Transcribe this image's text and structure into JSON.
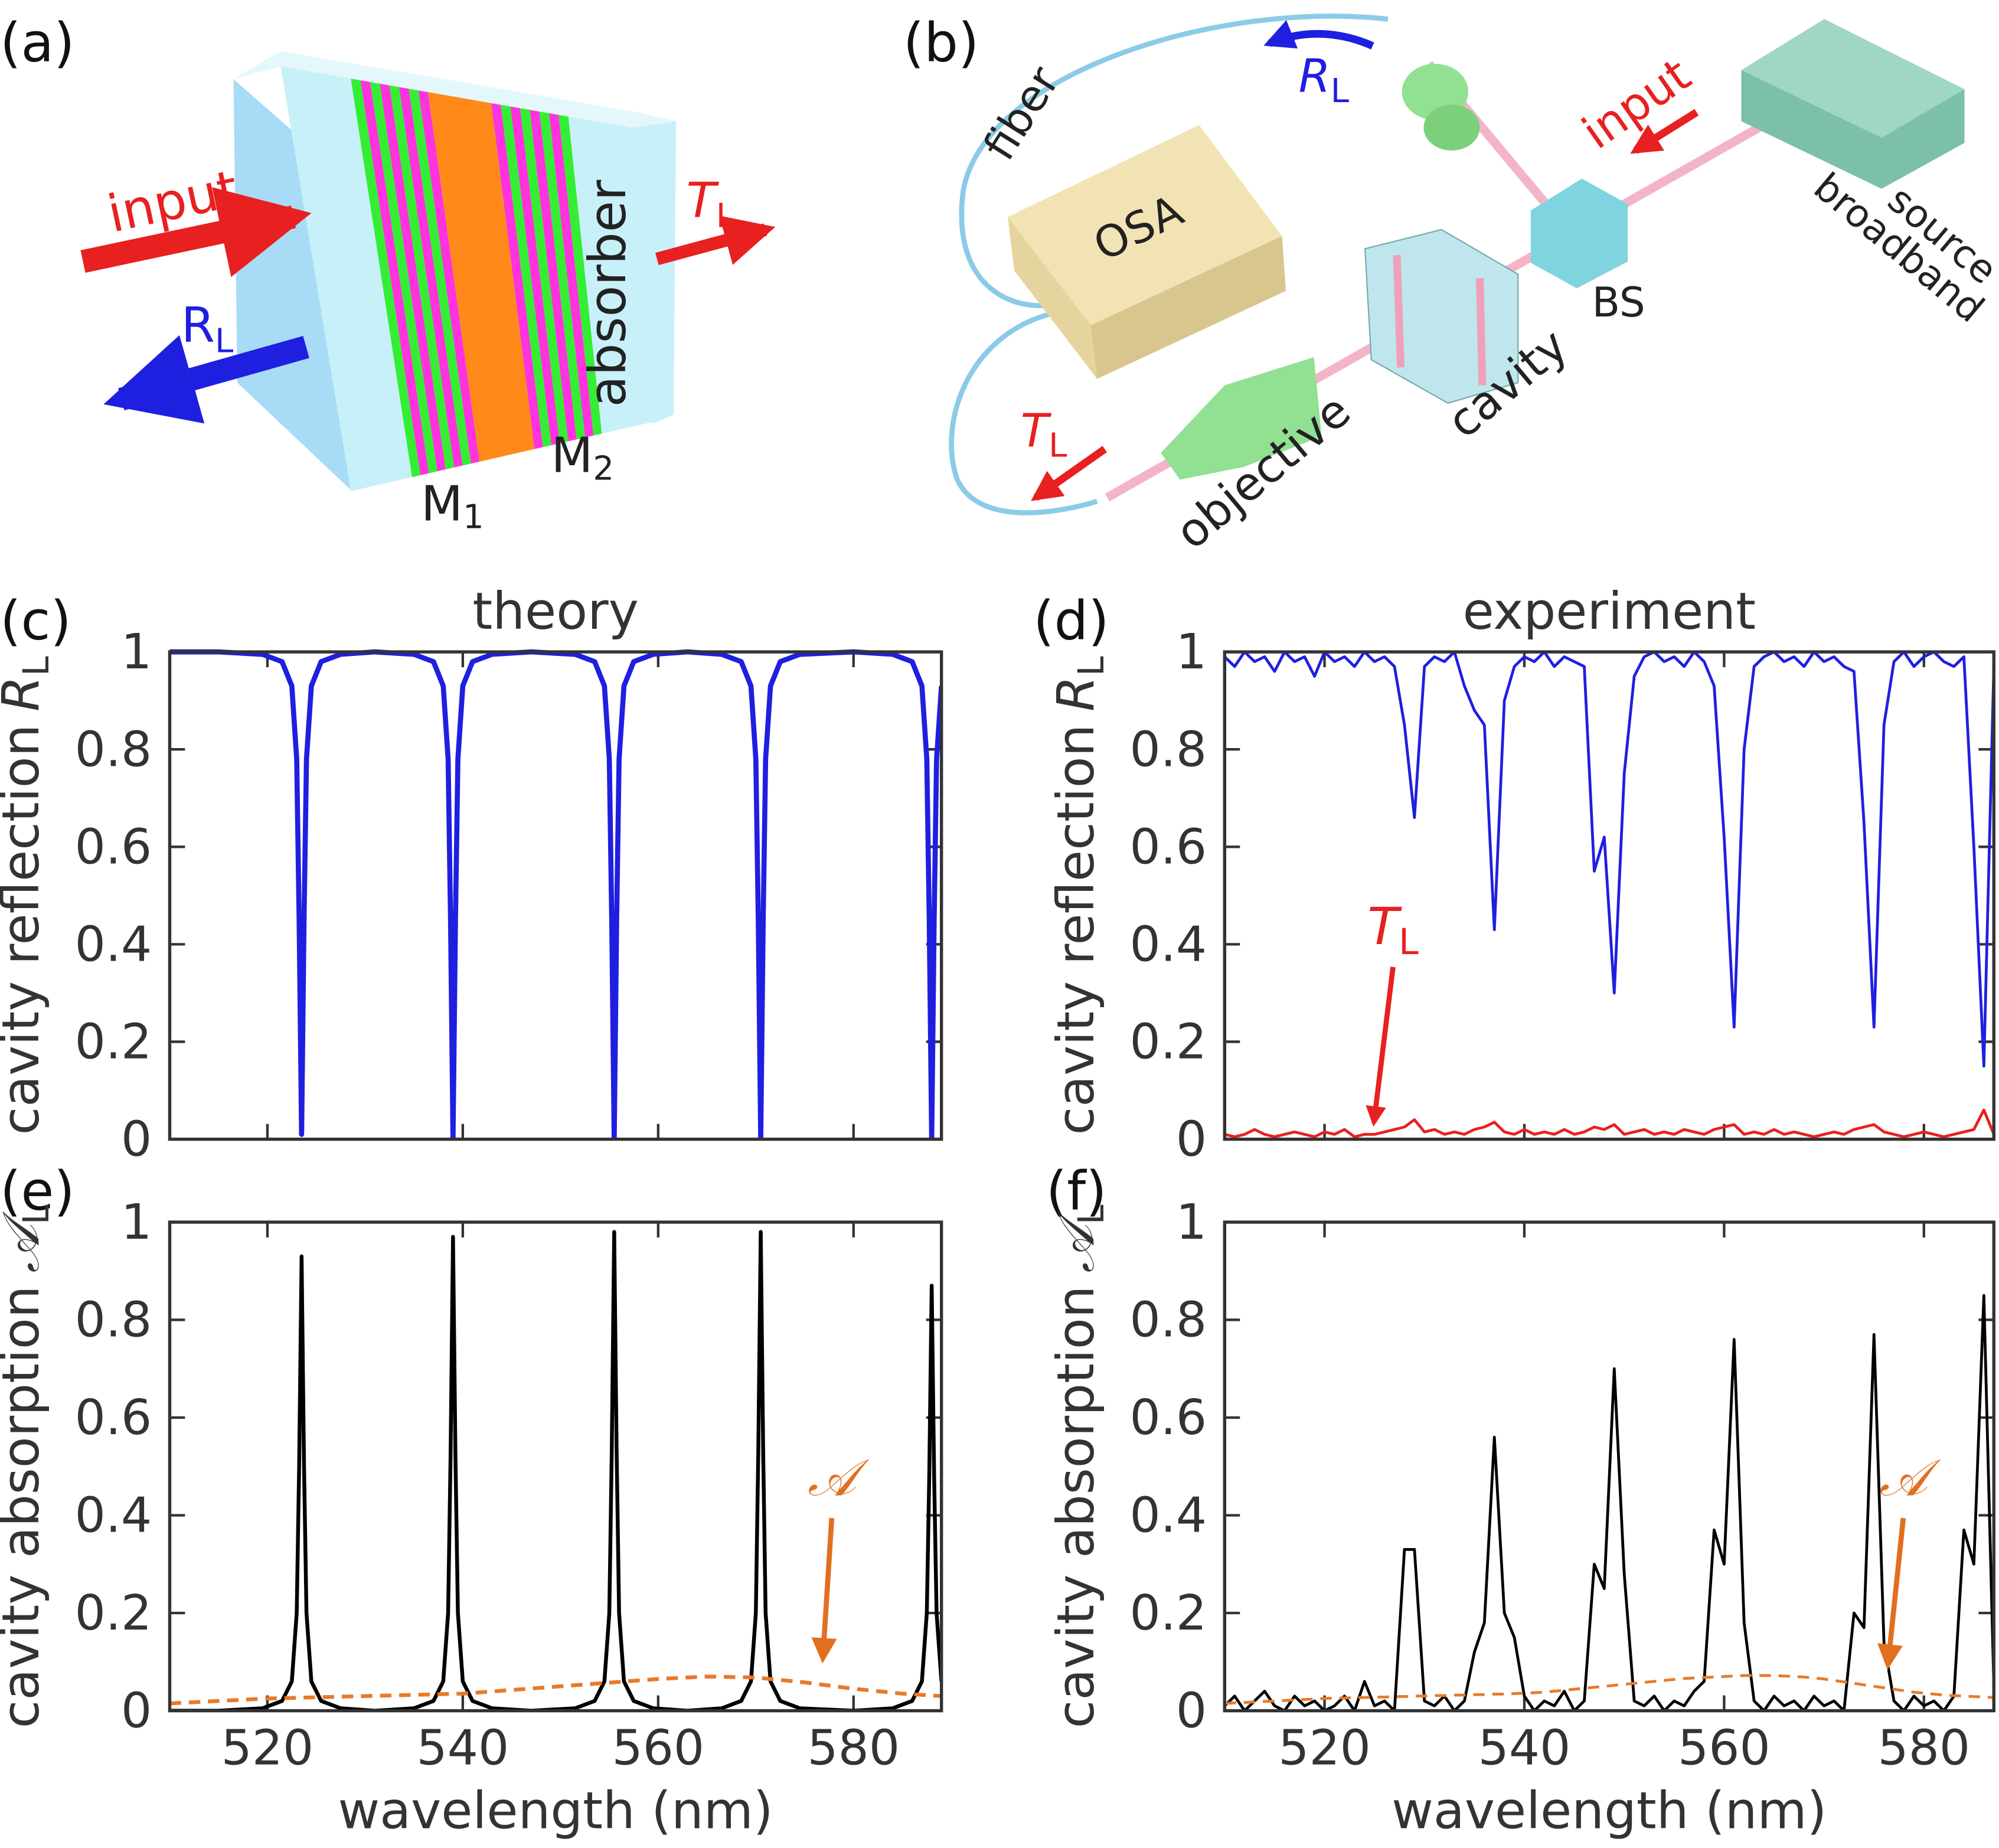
{
  "diagrams": {
    "a": {
      "label": "(a)",
      "input": "input",
      "absorber": "absorber",
      "R": "R",
      "R_sub": "L",
      "T": "T",
      "T_sub": "L",
      "M1": "M",
      "M1_sub": "1",
      "M2": "M",
      "M2_sub": "2"
    },
    "b": {
      "label": "(b)",
      "fiber": "fiber",
      "osa": "OSA",
      "R": "R",
      "R_sub": "L",
      "input": "input",
      "broadband": "broadband",
      "source": "source",
      "bs": "BS",
      "cavity": "cavity",
      "objective": "objective",
      "T": "T",
      "T_sub": "L"
    }
  },
  "chart_data": [
    {
      "type": "line",
      "panel_label": "(c)",
      "title": "theory",
      "ylabel": "cavity reflection",
      "ylabel_symbol": "R",
      "ylabel_subscript": "L",
      "x": [
        510,
        515,
        519.5,
        521.5,
        522.5,
        523,
        523.25,
        523.5,
        523.75,
        524,
        524.5,
        525.5,
        527.5,
        531,
        535,
        537,
        538,
        538.5,
        538.75,
        539,
        539.25,
        539.5,
        540,
        541,
        543,
        547,
        551.5,
        553.5,
        554.5,
        555,
        555.25,
        555.5,
        555.75,
        556,
        556.5,
        557.5,
        559.5,
        563,
        566.5,
        568.5,
        569.5,
        570,
        570.25,
        570.5,
        570.75,
        571,
        571.5,
        572.5,
        574.5,
        580,
        584,
        586,
        587,
        587.5,
        587.75,
        588,
        588.25,
        588.5,
        589
      ],
      "series": [
        {
          "color": "#1f1fe0",
          "values": [
            1,
            1,
            0.995,
            0.98,
            0.93,
            0.78,
            0.45,
            0.01,
            0.45,
            0.78,
            0.93,
            0.98,
            0.995,
            1,
            0.995,
            0.98,
            0.93,
            0.78,
            0.45,
            0,
            0.45,
            0.78,
            0.93,
            0.98,
            0.995,
            1,
            0.995,
            0.98,
            0.93,
            0.78,
            0.45,
            0,
            0.45,
            0.78,
            0.93,
            0.98,
            0.995,
            1,
            0.995,
            0.98,
            0.93,
            0.78,
            0.45,
            0,
            0.45,
            0.78,
            0.93,
            0.98,
            0.995,
            1,
            0.995,
            0.98,
            0.93,
            0.78,
            0.45,
            0,
            0.45,
            0.78,
            0.93
          ]
        }
      ],
      "xlim": [
        510,
        589
      ],
      "ylim": [
        0,
        1
      ],
      "xticks": [
        520,
        540,
        560,
        580
      ],
      "yticks": [
        0,
        0.2,
        0.4,
        0.6,
        0.8,
        1
      ],
      "xtick_labels": false
    },
    {
      "type": "line",
      "panel_label": "(d)",
      "title": "experiment",
      "ylabel": "cavity reflection",
      "ylabel_symbol": "R",
      "ylabel_subscript": "L",
      "x": [
        510,
        511,
        512,
        513,
        514,
        515,
        516,
        517,
        518,
        519,
        520,
        521,
        522,
        523,
        524,
        525,
        526,
        527,
        528,
        529,
        530,
        531,
        532,
        533,
        534,
        535,
        536,
        537,
        538,
        539,
        540,
        541,
        542,
        543,
        544,
        545,
        546,
        547,
        548,
        549,
        550,
        551,
        552,
        553,
        554,
        555,
        556,
        557,
        558,
        559,
        560,
        561,
        562,
        563,
        564,
        565,
        566,
        567,
        568,
        569,
        570,
        571,
        572,
        573,
        574,
        575,
        576,
        577,
        578,
        579,
        580,
        581,
        582,
        583,
        584,
        585,
        586,
        587
      ],
      "series": [
        {
          "color": "#1f1fe0",
          "values": [
            0.99,
            0.97,
            1,
            0.98,
            0.99,
            0.96,
            1,
            0.98,
            0.99,
            0.95,
            1,
            0.98,
            0.99,
            0.97,
            1,
            0.98,
            0.99,
            0.97,
            0.85,
            0.66,
            0.97,
            0.99,
            0.98,
            1,
            0.93,
            0.88,
            0.85,
            0.43,
            0.9,
            0.97,
            0.99,
            0.98,
            1,
            0.97,
            0.99,
            0.98,
            0.97,
            0.55,
            0.62,
            0.3,
            0.75,
            0.95,
            0.99,
            1,
            0.98,
            0.99,
            0.97,
            1,
            0.98,
            0.93,
            0.62,
            0.23,
            0.8,
            0.97,
            0.99,
            1,
            0.98,
            0.99,
            0.97,
            1,
            0.98,
            0.99,
            0.97,
            0.96,
            0.65,
            0.23,
            0.85,
            0.98,
            1,
            0.97,
            0.99,
            1,
            0.98,
            0.97,
            0.99,
            0.6,
            0.15,
            0.97
          ]
        },
        {
          "color": "#e82020",
          "values": [
            0.01,
            0.005,
            0.01,
            0.02,
            0.01,
            0.005,
            0.01,
            0.015,
            0.01,
            0.005,
            0.015,
            0.01,
            0.02,
            0.005,
            0.01,
            0.01,
            0.015,
            0.02,
            0.025,
            0.04,
            0.015,
            0.02,
            0.01,
            0.015,
            0.01,
            0.02,
            0.025,
            0.035,
            0.015,
            0.01,
            0.02,
            0.01,
            0.015,
            0.01,
            0.02,
            0.01,
            0.015,
            0.025,
            0.02,
            0.03,
            0.01,
            0.015,
            0.02,
            0.01,
            0.015,
            0.01,
            0.02,
            0.015,
            0.01,
            0.02,
            0.025,
            0.03,
            0.01,
            0.015,
            0.01,
            0.02,
            0.01,
            0.015,
            0.01,
            0.005,
            0.01,
            0.015,
            0.01,
            0.02,
            0.025,
            0.03,
            0.015,
            0.01,
            0.005,
            0.01,
            0.015,
            0.01,
            0.005,
            0.01,
            0.015,
            0.02,
            0.06,
            0.01
          ]
        }
      ],
      "annotations": [
        {
          "text": "T",
          "subscript": "L",
          "color": "#e82020"
        }
      ],
      "xlim": [
        510,
        587
      ],
      "ylim": [
        0,
        1
      ],
      "xticks": [
        520,
        540,
        560,
        580
      ],
      "yticks": [
        0,
        0.2,
        0.4,
        0.6,
        0.8,
        1
      ],
      "xtick_labels": false
    },
    {
      "type": "line",
      "panel_label": "(e)",
      "xlabel": "wavelength (nm)",
      "ylabel": "cavity absorption",
      "ylabel_symbol": "𝒜",
      "ylabel_subscript": "L",
      "x": [
        510,
        515,
        519.5,
        521.5,
        522.5,
        523,
        523.25,
        523.5,
        523.75,
        524,
        524.5,
        525.5,
        527.5,
        531,
        535,
        537,
        538,
        538.5,
        538.75,
        539,
        539.25,
        539.5,
        540,
        541,
        543,
        547,
        551.5,
        553.5,
        554.5,
        555,
        555.25,
        555.5,
        555.75,
        556,
        556.5,
        557.5,
        559.5,
        563,
        566.5,
        568.5,
        569.5,
        570,
        570.25,
        570.5,
        570.75,
        571,
        571.5,
        572.5,
        574.5,
        580,
        584,
        586,
        587,
        587.5,
        587.75,
        588,
        588.25,
        588.5,
        589
      ],
      "series": [
        {
          "color": "#000000",
          "values": [
            0,
            0,
            0.005,
            0.02,
            0.06,
            0.2,
            0.5,
            0.93,
            0.5,
            0.2,
            0.06,
            0.02,
            0.005,
            0,
            0.005,
            0.02,
            0.06,
            0.2,
            0.52,
            0.97,
            0.52,
            0.2,
            0.06,
            0.02,
            0.005,
            0,
            0.005,
            0.02,
            0.06,
            0.2,
            0.53,
            0.98,
            0.53,
            0.2,
            0.06,
            0.02,
            0.005,
            0,
            0.005,
            0.02,
            0.06,
            0.2,
            0.53,
            0.98,
            0.53,
            0.2,
            0.06,
            0.02,
            0.005,
            0,
            0.005,
            0.02,
            0.06,
            0.2,
            0.48,
            0.87,
            0.48,
            0.2,
            0.06
          ]
        },
        {
          "color": "#e87a2a",
          "dashed": true,
          "x": [
            510,
            520,
            530,
            540,
            550,
            560,
            565,
            570,
            575,
            580,
            585,
            589
          ],
          "values": [
            0.015,
            0.025,
            0.03,
            0.035,
            0.05,
            0.065,
            0.07,
            0.068,
            0.058,
            0.045,
            0.035,
            0.03
          ]
        }
      ],
      "annotations": [
        {
          "text": "𝒜",
          "color": "#e07020"
        }
      ],
      "xlim": [
        510,
        589
      ],
      "ylim": [
        0,
        1
      ],
      "xticks": [
        520,
        540,
        560,
        580
      ],
      "yticks": [
        0,
        0.2,
        0.4,
        0.6,
        0.8,
        1
      ],
      "xtick_labels": true
    },
    {
      "type": "line",
      "panel_label": "(f)",
      "xlabel": "wavelength (nm)",
      "ylabel": "cavity absorption",
      "ylabel_symbol": "𝒜",
      "ylabel_subscript": "L",
      "x": [
        510,
        511,
        512,
        513,
        514,
        515,
        516,
        517,
        518,
        519,
        520,
        521,
        522,
        523,
        524,
        525,
        526,
        527,
        528,
        529,
        530,
        531,
        532,
        533,
        534,
        535,
        536,
        537,
        538,
        539,
        540,
        541,
        542,
        543,
        544,
        545,
        546,
        547,
        548,
        549,
        550,
        551,
        552,
        553,
        554,
        555,
        556,
        557,
        558,
        559,
        560,
        561,
        562,
        563,
        564,
        565,
        566,
        567,
        568,
        569,
        570,
        571,
        572,
        573,
        574,
        575,
        576,
        577,
        578,
        579,
        580,
        581,
        582,
        583,
        584,
        585,
        586,
        587
      ],
      "series": [
        {
          "color": "#000000",
          "values": [
            0.01,
            0.03,
            0,
            0.02,
            0.04,
            0.01,
            0,
            0.03,
            0.01,
            0.02,
            0,
            0.01,
            0.03,
            0,
            0.06,
            0.01,
            0.02,
            0,
            0.33,
            0.33,
            0.02,
            0.01,
            0.03,
            0,
            0.02,
            0.12,
            0.18,
            0.56,
            0.2,
            0.15,
            0.03,
            0,
            0.02,
            0.01,
            0.04,
            0,
            0.02,
            0.3,
            0.25,
            0.7,
            0.28,
            0.02,
            0.01,
            0.03,
            0,
            0.02,
            0.01,
            0.04,
            0.06,
            0.37,
            0.3,
            0.76,
            0.18,
            0.02,
            0,
            0.03,
            0.01,
            0.02,
            0,
            0.03,
            0.01,
            0.02,
            0,
            0.2,
            0.17,
            0.77,
            0.14,
            0.02,
            0,
            0.03,
            0.01,
            0.02,
            0,
            0.03,
            0.37,
            0.3,
            0.85,
            0.05
          ]
        },
        {
          "color": "#e87a2a",
          "dashed": true,
          "values": [
            0.015,
            0.016,
            0.017,
            0.018,
            0.019,
            0.02,
            0.021,
            0.022,
            0.023,
            0.024,
            0.025,
            0.026,
            0.026,
            0.027,
            0.027,
            0.028,
            0.028,
            0.029,
            0.029,
            0.03,
            0.03,
            0.031,
            0.031,
            0.032,
            0.032,
            0.033,
            0.033,
            0.034,
            0.034,
            0.035,
            0.036,
            0.037,
            0.038,
            0.04,
            0.042,
            0.044,
            0.046,
            0.048,
            0.05,
            0.052,
            0.054,
            0.056,
            0.058,
            0.06,
            0.062,
            0.064,
            0.066,
            0.067,
            0.068,
            0.069,
            0.07,
            0.071,
            0.072,
            0.072,
            0.072,
            0.072,
            0.071,
            0.07,
            0.069,
            0.067,
            0.065,
            0.062,
            0.059,
            0.056,
            0.053,
            0.05,
            0.047,
            0.044,
            0.041,
            0.038,
            0.036,
            0.034,
            0.032,
            0.031,
            0.03,
            0.029,
            0.028,
            0.027
          ]
        }
      ],
      "annotations": [
        {
          "text": "𝒜",
          "color": "#e07020"
        }
      ],
      "xlim": [
        510,
        587
      ],
      "ylim": [
        0,
        1
      ],
      "xticks": [
        520,
        540,
        560,
        580
      ],
      "yticks": [
        0,
        0.2,
        0.4,
        0.6,
        0.8,
        1
      ],
      "xtick_labels": true
    }
  ]
}
